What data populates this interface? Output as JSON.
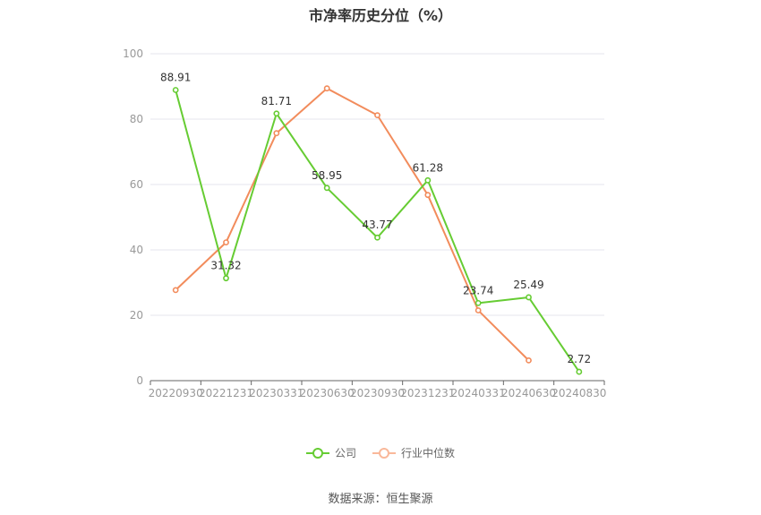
{
  "chart_data": {
    "type": "line",
    "title": "市净率历史分位（%）",
    "categories": [
      "20220930",
      "20221231",
      "20230331",
      "20230630",
      "20230930",
      "20231231",
      "20240331",
      "20240630",
      "20240830"
    ],
    "ylim": [
      0,
      100
    ],
    "yticks": [
      0,
      20,
      40,
      60,
      80,
      100
    ],
    "grid": true,
    "legend_position": "bottom",
    "series": [
      {
        "name": "公司",
        "color": "#66cc33",
        "values": [
          88.91,
          31.32,
          81.71,
          58.95,
          43.77,
          61.28,
          23.74,
          25.49,
          2.72
        ],
        "labels": [
          "88.91",
          "31.32",
          "81.71",
          "58.95",
          "43.77",
          "61.28",
          "23.74",
          "25.49",
          "2.72"
        ]
      },
      {
        "name": "行业中位数",
        "color": "#f28c5c",
        "values": [
          27.7,
          42.3,
          75.7,
          89.4,
          81.2,
          56.8,
          21.5,
          6.2,
          null
        ]
      }
    ],
    "source": "数据来源：恒生聚源"
  }
}
